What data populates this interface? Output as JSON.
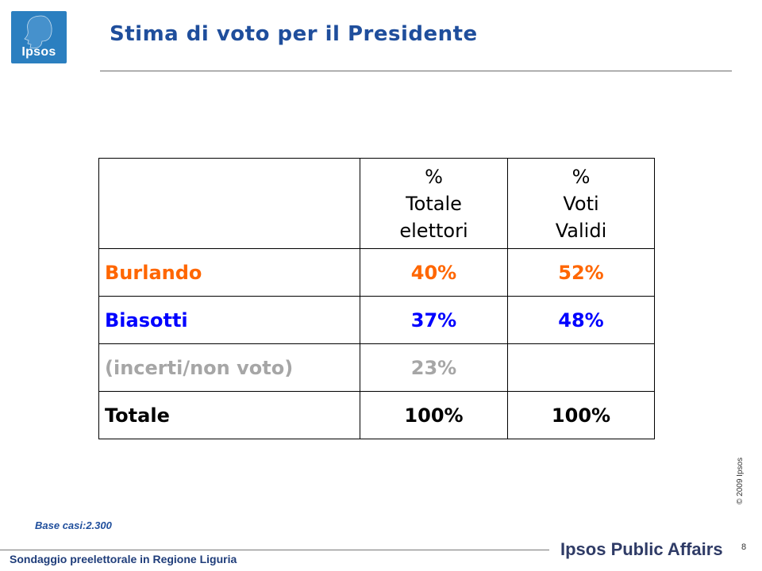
{
  "logo": {
    "text": "Ipsos"
  },
  "title": "Stima di voto per il Presidente",
  "table": {
    "headers": [
      {
        "lines": []
      },
      {
        "lines": [
          "%",
          "Totale",
          "elettori"
        ]
      },
      {
        "lines": [
          "%",
          "Voti",
          "Validi"
        ]
      }
    ],
    "rows": [
      {
        "name": "Burlando",
        "totale": "40%",
        "validi": "52%",
        "color": "#ff6600"
      },
      {
        "name": "Biasotti",
        "totale": "37%",
        "validi": "48%",
        "color": "#0000ff"
      },
      {
        "name": "(incerti/non voto)",
        "totale": "23%",
        "validi": "",
        "color": "#a6a6a6"
      },
      {
        "name": "Totale",
        "totale": "100%",
        "validi": "100%",
        "color": "#000000"
      }
    ]
  },
  "base_note": "Base casi:2.300",
  "copyright": "© 2009 Ipsos",
  "footer": {
    "survey": "Sondaggio preelettorale in Regione Liguria",
    "brand": "Ipsos Public Affairs",
    "page": "8"
  }
}
